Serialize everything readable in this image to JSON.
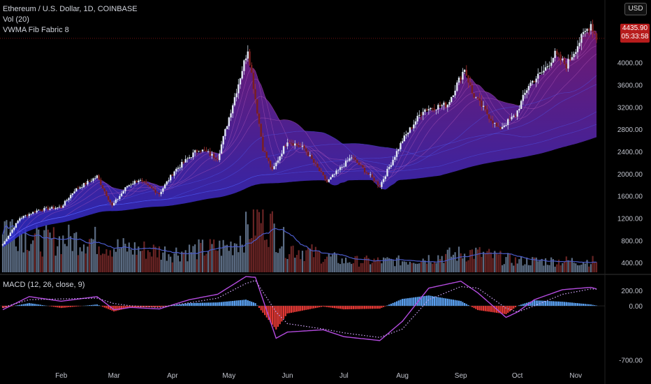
{
  "header": {
    "title": "Ethereum / U.S. Dollar, 1D, COINBASE",
    "indicator_vol": "Vol (20)",
    "indicator_vwma": "VWMA Fib Fabric 8",
    "currency": "USD"
  },
  "last_price": {
    "price": "4435.90",
    "countdown": "05:33:58"
  },
  "macd": {
    "label": "MACD (12, 26, close, 9)"
  },
  "colors": {
    "up": "#4a90d9",
    "down": "#d32f2f",
    "bg": "#000000",
    "fabric_top": "#8a1f8a",
    "fabric_bottom": "#2a2fd4",
    "hist_pos": "#5aa0f0",
    "hist_neg": "#e53935",
    "macd_line": "#b44bdf",
    "signal_line": "#d6a8ff",
    "vol_ma": "#4a5ac8"
  },
  "chart_data": [
    {
      "type": "candlestick",
      "title": "Ethereum / U.S. Dollar, 1D, COINBASE",
      "ylim": [
        200,
        4900
      ],
      "y_ticks": [
        400,
        800,
        1200,
        1600,
        2000,
        2400,
        2800,
        3200,
        3600,
        4000
      ],
      "y_tick_labels": [
        "400.00",
        "800.00",
        "1200.00",
        "1600.00",
        "2000.00",
        "2400.00",
        "2800.00",
        "3200.00",
        "3600.00",
        "4000.00"
      ],
      "x_labels": [
        "Feb",
        "Mar",
        "Apr",
        "May",
        "Jun",
        "Jul",
        "Aug",
        "Sep",
        "Oct",
        "Nov"
      ],
      "x_label_dates": [
        "2021-02-01",
        "2021-03-01",
        "2021-04-01",
        "2021-05-01",
        "2021-06-01",
        "2021-07-01",
        "2021-08-01",
        "2021-09-01",
        "2021-10-01",
        "2021-11-01"
      ],
      "date_range": [
        "2021-01-01",
        "2021-11-09"
      ],
      "close_path": [
        [
          "2021-01-01",
          730
        ],
        [
          "2021-01-10",
          1200
        ],
        [
          "2021-01-20",
          1350
        ],
        [
          "2021-02-01",
          1400
        ],
        [
          "2021-02-08",
          1700
        ],
        [
          "2021-02-20",
          1950
        ],
        [
          "2021-02-28",
          1420
        ],
        [
          "2021-03-08",
          1780
        ],
        [
          "2021-03-14",
          1890
        ],
        [
          "2021-03-25",
          1640
        ],
        [
          "2021-04-02",
          2050
        ],
        [
          "2021-04-15",
          2450
        ],
        [
          "2021-04-25",
          2280
        ],
        [
          "2021-05-05",
          3500
        ],
        [
          "2021-05-11",
          4250
        ],
        [
          "2021-05-19",
          2450
        ],
        [
          "2021-05-24",
          2050
        ],
        [
          "2021-06-01",
          2600
        ],
        [
          "2021-06-10",
          2450
        ],
        [
          "2021-06-22",
          1850
        ],
        [
          "2021-07-05",
          2300
        ],
        [
          "2021-07-20",
          1780
        ],
        [
          "2021-08-01",
          2600
        ],
        [
          "2021-08-12",
          3150
        ],
        [
          "2021-08-25",
          3250
        ],
        [
          "2021-09-03",
          3900
        ],
        [
          "2021-09-07",
          3450
        ],
        [
          "2021-09-21",
          2800
        ],
        [
          "2021-09-30",
          3050
        ],
        [
          "2021-10-07",
          3600
        ],
        [
          "2021-10-15",
          3850
        ],
        [
          "2021-10-21",
          4150
        ],
        [
          "2021-10-27",
          3950
        ],
        [
          "2021-11-05",
          4500
        ],
        [
          "2021-11-09",
          4700
        ],
        [
          "2021-11-12",
          4435.9
        ]
      ],
      "last_price": 4435.9
    },
    {
      "type": "bar",
      "title": "Vol (20)",
      "note": "volume bars with 20-period moving average",
      "relative_profile": [
        [
          "2021-01-01",
          0.9
        ],
        [
          "2021-01-20",
          0.55
        ],
        [
          "2021-02-15",
          0.6
        ],
        [
          "2021-03-01",
          0.45
        ],
        [
          "2021-04-01",
          0.35
        ],
        [
          "2021-05-01",
          0.45
        ],
        [
          "2021-05-19",
          1.0
        ],
        [
          "2021-06-01",
          0.45
        ],
        [
          "2021-07-01",
          0.2
        ],
        [
          "2021-08-01",
          0.2
        ],
        [
          "2021-09-07",
          0.35
        ],
        [
          "2021-10-01",
          0.2
        ],
        [
          "2021-11-12",
          0.2
        ]
      ]
    },
    {
      "type": "line",
      "title": "MACD (12, 26, close, 9)",
      "ylim": [
        -760,
        390
      ],
      "y_ticks": [
        -700,
        0,
        200
      ],
      "y_tick_labels": [
        "-700.00",
        "0.00",
        "200.00"
      ],
      "series": [
        {
          "name": "MACD",
          "points": [
            [
              "2021-01-01",
              -50
            ],
            [
              "2021-01-15",
              120
            ],
            [
              "2021-02-01",
              60
            ],
            [
              "2021-02-20",
              120
            ],
            [
              "2021-03-01",
              -50
            ],
            [
              "2021-03-10",
              -20
            ],
            [
              "2021-03-25",
              -40
            ],
            [
              "2021-04-10",
              80
            ],
            [
              "2021-04-25",
              150
            ],
            [
              "2021-05-10",
              380
            ],
            [
              "2021-05-15",
              370
            ],
            [
              "2021-05-26",
              -420
            ],
            [
              "2021-06-01",
              -340
            ],
            [
              "2021-06-20",
              -310
            ],
            [
              "2021-07-01",
              -400
            ],
            [
              "2021-07-20",
              -450
            ],
            [
              "2021-08-01",
              -200
            ],
            [
              "2021-08-15",
              230
            ],
            [
              "2021-09-01",
              320
            ],
            [
              "2021-09-10",
              170
            ],
            [
              "2021-09-25",
              -150
            ],
            [
              "2021-10-01",
              -80
            ],
            [
              "2021-10-10",
              80
            ],
            [
              "2021-10-25",
              210
            ],
            [
              "2021-11-09",
              240
            ],
            [
              "2021-11-12",
              220
            ]
          ]
        },
        {
          "name": "Signal",
          "points": [
            [
              "2021-01-01",
              -20
            ],
            [
              "2021-01-15",
              80
            ],
            [
              "2021-02-01",
              90
            ],
            [
              "2021-02-20",
              100
            ],
            [
              "2021-03-01",
              30
            ],
            [
              "2021-03-10",
              0
            ],
            [
              "2021-03-25",
              -20
            ],
            [
              "2021-04-10",
              40
            ],
            [
              "2021-04-25",
              100
            ],
            [
              "2021-05-10",
              290
            ],
            [
              "2021-05-15",
              330
            ],
            [
              "2021-05-26",
              -80
            ],
            [
              "2021-06-01",
              -230
            ],
            [
              "2021-06-20",
              -300
            ],
            [
              "2021-07-01",
              -350
            ],
            [
              "2021-07-20",
              -410
            ],
            [
              "2021-08-01",
              -300
            ],
            [
              "2021-08-15",
              80
            ],
            [
              "2021-09-01",
              250
            ],
            [
              "2021-09-10",
              230
            ],
            [
              "2021-09-25",
              -30
            ],
            [
              "2021-10-01",
              -80
            ],
            [
              "2021-10-10",
              0
            ],
            [
              "2021-10-25",
              150
            ],
            [
              "2021-11-09",
              220
            ],
            [
              "2021-11-12",
              215
            ]
          ]
        }
      ]
    }
  ]
}
